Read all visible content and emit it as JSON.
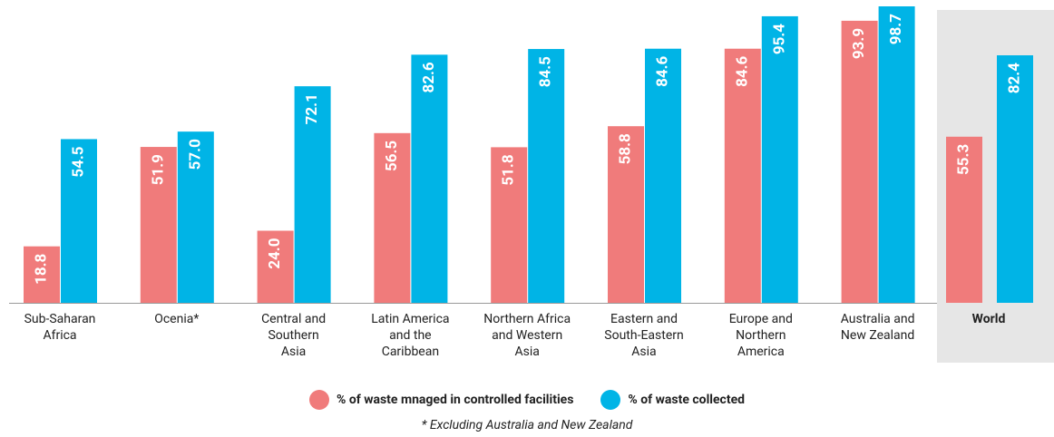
{
  "chart_data": {
    "type": "bar",
    "categories": [
      "Sub-Saharan\nAfrica",
      "Ocenia*",
      "Central and\nSouthern\nAsia",
      "Latin America\nand the\nCaribbean",
      "Northern Africa\nand Western\nAsia",
      "Eastern and\nSouth-Eastern\nAsia",
      "Europe and\nNorthern\nAmerica",
      "Australia and\nNew Zealand",
      "World"
    ],
    "series": [
      {
        "name": "% of waste mnaged in controlled facilities",
        "color": "#f07b7b",
        "values": [
          18.8,
          51.9,
          24.0,
          56.5,
          51.8,
          58.8,
          84.6,
          93.9,
          55.3
        ],
        "value_labels": [
          "18.8",
          "51.9",
          "24.0",
          "56.5",
          "51.8",
          "58.8",
          "84.6",
          "93.9",
          "55.3"
        ]
      },
      {
        "name": "% of waste collected",
        "color": "#00b4e6",
        "values": [
          54.5,
          57.0,
          72.1,
          82.6,
          84.5,
          84.6,
          95.4,
          98.7,
          82.4
        ],
        "value_labels": [
          "54.5",
          "57.0",
          "72.1",
          "82.6",
          "84.5",
          "84.6",
          "95.4",
          "98.7",
          "82.4"
        ]
      }
    ],
    "ylim": [
      0,
      100
    ],
    "footnote": "* Excluding Australia and New Zealand"
  }
}
